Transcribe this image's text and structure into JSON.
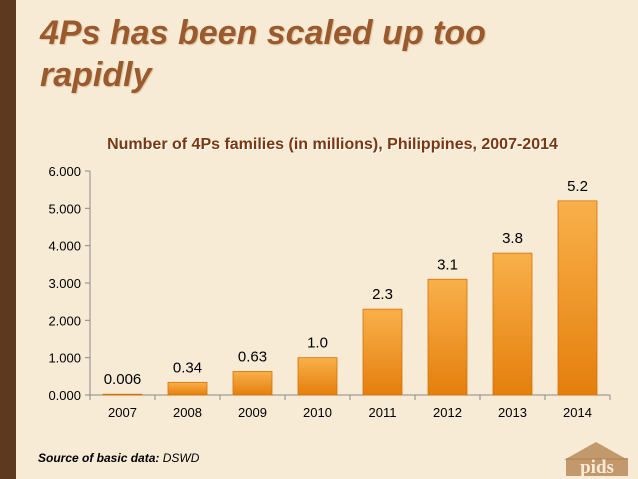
{
  "slide": {
    "title": "4Ps has been scaled up too rapidly",
    "source_label": "Source of basic data:",
    "source_value": "DSWD",
    "logo_text": "pids"
  },
  "colors": {
    "bar_fill_top": "#f9b04a",
    "bar_fill_bottom": "#e47f0d",
    "title": "#9b5a2e",
    "chart_title": "#7a3710",
    "background": "#f7ebd6",
    "left_bar": "#5d3a1f"
  },
  "chart_data": {
    "type": "bar",
    "title": "Number of 4Ps families (in millions), Philippines, 2007-2014",
    "categories": [
      "2007",
      "2008",
      "2009",
      "2010",
      "2011",
      "2012",
      "2013",
      "2014"
    ],
    "values": [
      0.006,
      0.34,
      0.63,
      1.0,
      2.3,
      3.1,
      3.8,
      5.2
    ],
    "data_labels": [
      "0.006",
      "0.34",
      "0.63",
      "1.0",
      "2.3",
      "3.1",
      "3.8",
      "5.2"
    ],
    "ylim": [
      0,
      6
    ],
    "y_ticks": [
      "0.000",
      "1.000",
      "2.000",
      "3.000",
      "4.000",
      "5.000",
      "6.000"
    ],
    "xlabel": "",
    "ylabel": "",
    "grid": false,
    "legend": "none"
  }
}
